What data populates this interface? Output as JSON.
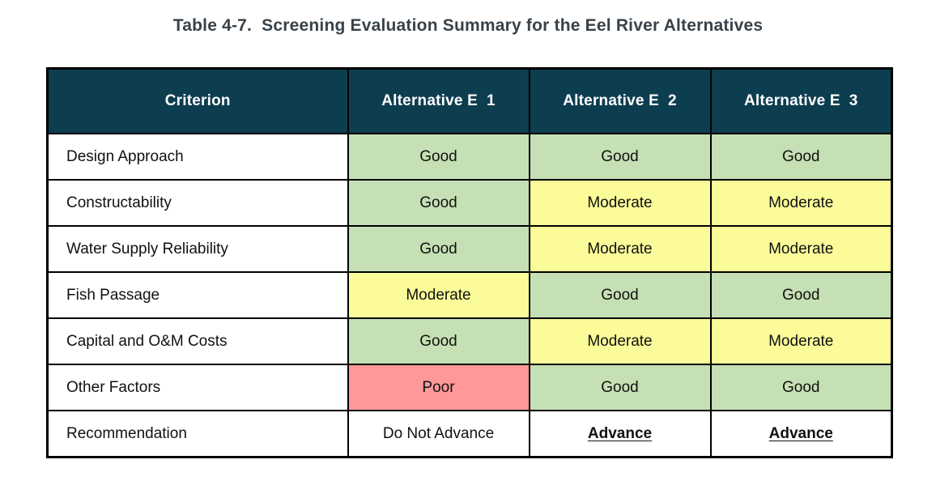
{
  "title": "Table 4-7.  Screening Evaluation Summary for the Eel River Alternatives",
  "colors": {
    "header_bg": "#0d3e50",
    "header_text": "#ffffff",
    "good": "#c5e0b4",
    "moderate": "#fbfb99",
    "poor": "#ff9898",
    "none": "#ffffff",
    "border": "#000000",
    "title_text": "#394249"
  },
  "table": {
    "columns": [
      "Criterion",
      "Alternative E  1",
      "Alternative E  2",
      "Alternative E  3"
    ],
    "rows": [
      {
        "criterion": "Design Approach",
        "values": [
          {
            "text": "Good",
            "rating": "good",
            "emphasis": false
          },
          {
            "text": "Good",
            "rating": "good",
            "emphasis": false
          },
          {
            "text": "Good",
            "rating": "good",
            "emphasis": false
          }
        ]
      },
      {
        "criterion": "Constructability",
        "values": [
          {
            "text": "Good",
            "rating": "good",
            "emphasis": false
          },
          {
            "text": "Moderate",
            "rating": "moderate",
            "emphasis": false
          },
          {
            "text": "Moderate",
            "rating": "moderate",
            "emphasis": false
          }
        ]
      },
      {
        "criterion": "Water Supply Reliability",
        "values": [
          {
            "text": "Good",
            "rating": "good",
            "emphasis": false
          },
          {
            "text": "Moderate",
            "rating": "moderate",
            "emphasis": false
          },
          {
            "text": "Moderate",
            "rating": "moderate",
            "emphasis": false
          }
        ]
      },
      {
        "criterion": "Fish Passage",
        "values": [
          {
            "text": "Moderate",
            "rating": "moderate",
            "emphasis": false
          },
          {
            "text": "Good",
            "rating": "good",
            "emphasis": false
          },
          {
            "text": "Good",
            "rating": "good",
            "emphasis": false
          }
        ]
      },
      {
        "criterion": "Capital and O&M Costs",
        "values": [
          {
            "text": "Good",
            "rating": "good",
            "emphasis": false
          },
          {
            "text": "Moderate",
            "rating": "moderate",
            "emphasis": false
          },
          {
            "text": "Moderate",
            "rating": "moderate",
            "emphasis": false
          }
        ]
      },
      {
        "criterion": "Other Factors",
        "values": [
          {
            "text": "Poor",
            "rating": "poor",
            "emphasis": false
          },
          {
            "text": "Good",
            "rating": "good",
            "emphasis": false
          },
          {
            "text": "Good",
            "rating": "good",
            "emphasis": false
          }
        ]
      },
      {
        "criterion": "Recommendation",
        "values": [
          {
            "text": "Do Not Advance",
            "rating": "none",
            "emphasis": false
          },
          {
            "text": "Advance",
            "rating": "none",
            "emphasis": true
          },
          {
            "text": "Advance",
            "rating": "none",
            "emphasis": true
          }
        ]
      }
    ]
  }
}
